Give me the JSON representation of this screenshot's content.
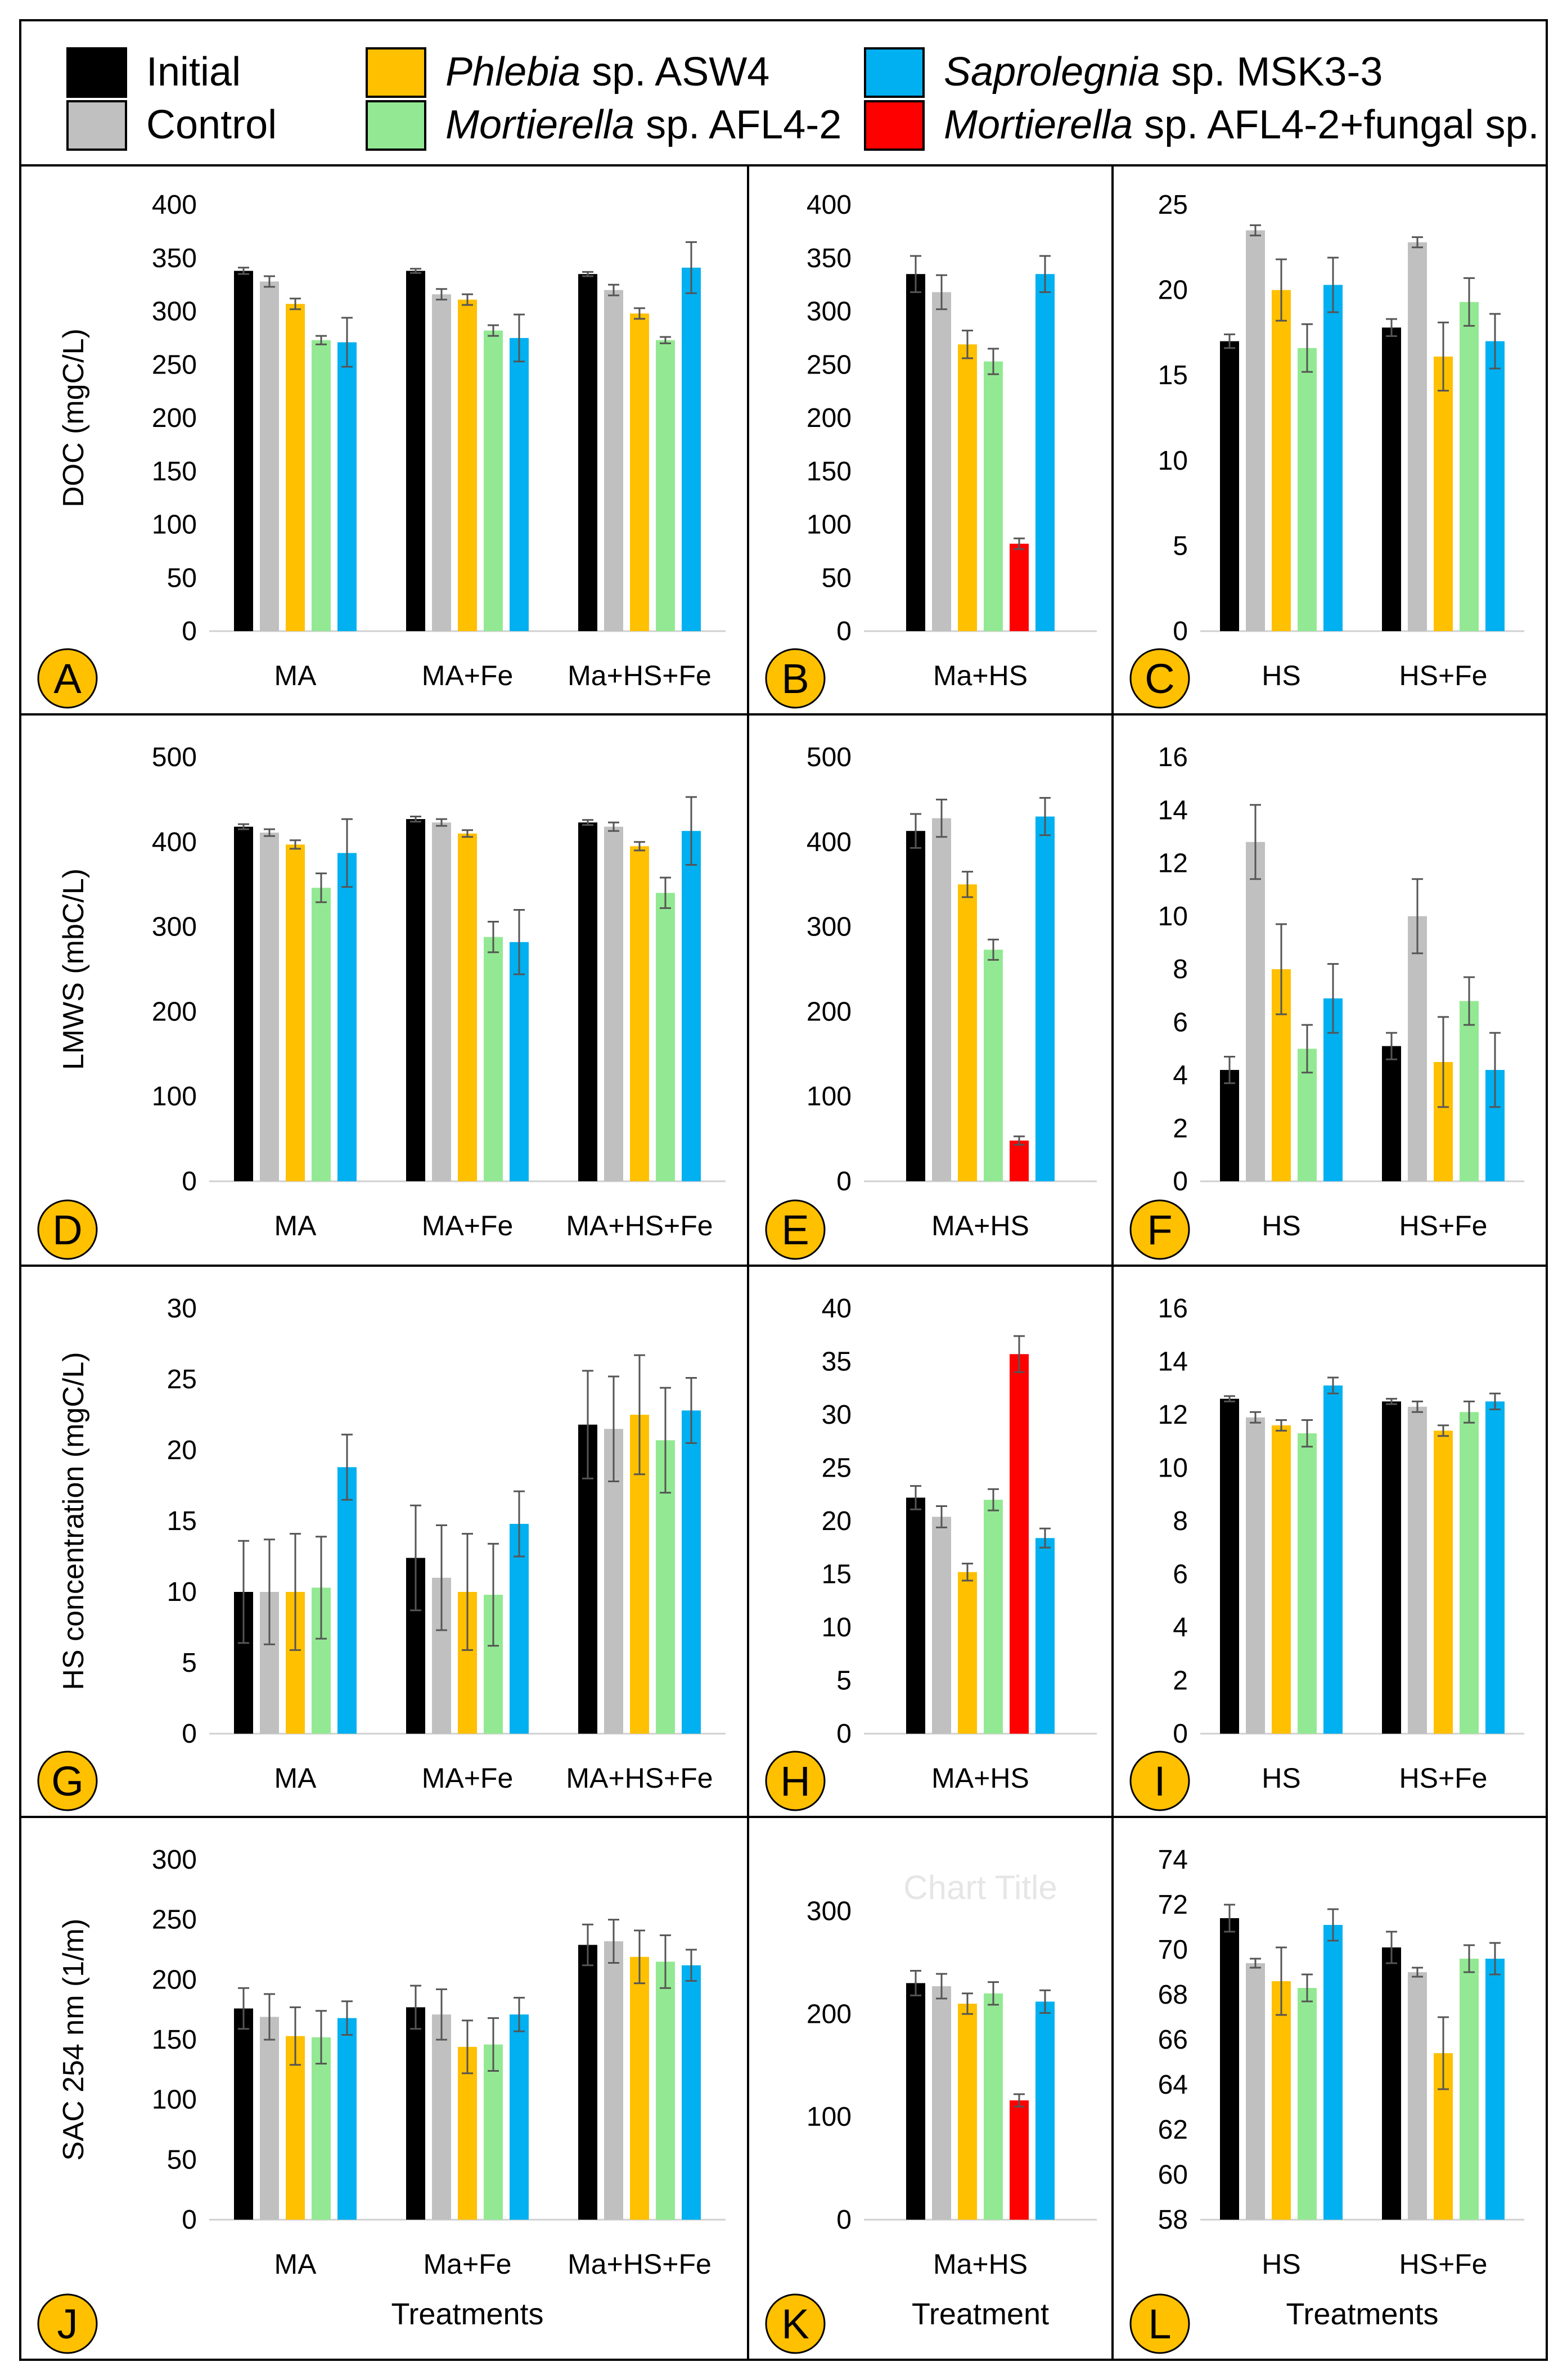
{
  "legend": {
    "items": [
      {
        "label_plain": "Initial",
        "label_italic": "",
        "color": "#000000"
      },
      {
        "label_plain": "Control",
        "label_italic": "",
        "color": "#c0c0c0"
      },
      {
        "label_italic": "Phlebia",
        "label_plain": " sp. ASW4",
        "color": "#ffc000"
      },
      {
        "label_italic": "Mortierella",
        "label_plain": " sp. AFL4-2",
        "color": "#93e993"
      },
      {
        "label_italic": "Saprolegnia",
        "label_plain": " sp. MSK3-3",
        "color": "#00b0f0"
      },
      {
        "label_italic": "Mortierella",
        "label_plain": " sp. AFL4-2+fungal sp.",
        "color": "#ff0000"
      }
    ]
  },
  "colors": {
    "Initial": "#000000",
    "Control": "#c0c0c0",
    "Phlebia": "#ffc000",
    "Mortierella": "#93e993",
    "Saprolegnia": "#00b0f0",
    "Mixed": "#ff0000",
    "badge": "#ffc000",
    "errorbar": "#555555"
  },
  "chart_data": [
    {
      "panel": "A",
      "type": "bar",
      "ylabel": "DOC (mgC/L)",
      "xlabel": "",
      "ylim": [
        0,
        400
      ],
      "yticks": [
        0,
        50,
        100,
        150,
        200,
        250,
        300,
        350,
        400
      ],
      "series_keys": [
        "Initial",
        "Control",
        "Phlebia",
        "Mortierella",
        "Saprolegnia"
      ],
      "groups": [
        {
          "category": "MA",
          "values": [
            338,
            328,
            307,
            273,
            271
          ],
          "errors": [
            3,
            5,
            5,
            4,
            23
          ]
        },
        {
          "category": "MA+Fe",
          "values": [
            338,
            316,
            311,
            282,
            275
          ],
          "errors": [
            2,
            5,
            5,
            5,
            22
          ]
        },
        {
          "category": "Ma+HS+Fe",
          "values": [
            335,
            320,
            298,
            273,
            341
          ],
          "errors": [
            2,
            5,
            5,
            3,
            24
          ]
        }
      ]
    },
    {
      "panel": "B",
      "type": "bar",
      "ylabel": "",
      "xlabel": "",
      "ylim": [
        0,
        400
      ],
      "yticks": [
        0,
        50,
        100,
        150,
        200,
        250,
        300,
        350,
        400
      ],
      "series_keys": [
        "Initial",
        "Control",
        "Phlebia",
        "Mortierella",
        "Mixed",
        "Saprolegnia"
      ],
      "groups": [
        {
          "category": "Ma+HS",
          "values": [
            335,
            318,
            269,
            253,
            82,
            335
          ],
          "errors": [
            17,
            16,
            13,
            12,
            5,
            17
          ]
        }
      ]
    },
    {
      "panel": "C",
      "type": "bar",
      "ylabel": "",
      "xlabel": "",
      "ylim": [
        0,
        25
      ],
      "yticks": [
        0,
        5,
        10,
        15,
        20,
        25
      ],
      "series_keys": [
        "Initial",
        "Control",
        "Phlebia",
        "Mortierella",
        "Saprolegnia"
      ],
      "groups": [
        {
          "category": "HS",
          "values": [
            17.0,
            23.5,
            20.0,
            16.6,
            20.3
          ],
          "errors": [
            0.4,
            0.3,
            1.8,
            1.4,
            1.6
          ]
        },
        {
          "category": "HS+Fe",
          "values": [
            17.8,
            22.8,
            16.1,
            19.3,
            17.0
          ],
          "errors": [
            0.5,
            0.3,
            2.0,
            1.4,
            1.6
          ]
        }
      ]
    },
    {
      "panel": "D",
      "type": "bar",
      "ylabel": "LMWS (mbC/L)",
      "xlabel": "",
      "ylim": [
        0,
        500
      ],
      "yticks": [
        0,
        100,
        200,
        300,
        400,
        500
      ],
      "series_keys": [
        "Initial",
        "Control",
        "Phlebia",
        "Mortierella",
        "Saprolegnia"
      ],
      "groups": [
        {
          "category": "MA",
          "values": [
            418,
            411,
            397,
            346,
            387
          ],
          "errors": [
            3,
            4,
            5,
            17,
            40
          ]
        },
        {
          "category": "MA+Fe",
          "values": [
            427,
            423,
            410,
            288,
            282
          ],
          "errors": [
            3,
            4,
            4,
            18,
            38
          ]
        },
        {
          "category": "MA+HS+Fe",
          "values": [
            423,
            418,
            395,
            340,
            413
          ],
          "errors": [
            3,
            5,
            5,
            18,
            40
          ]
        }
      ]
    },
    {
      "panel": "E",
      "type": "bar",
      "ylabel": "",
      "xlabel": "",
      "ylim": [
        0,
        500
      ],
      "yticks": [
        0,
        100,
        200,
        300,
        400,
        500
      ],
      "series_keys": [
        "Initial",
        "Control",
        "Phlebia",
        "Mortierella",
        "Mixed",
        "Saprolegnia"
      ],
      "groups": [
        {
          "category": "MA+HS",
          "values": [
            413,
            428,
            350,
            273,
            48,
            430
          ],
          "errors": [
            20,
            22,
            15,
            12,
            5,
            22
          ]
        }
      ]
    },
    {
      "panel": "F",
      "type": "bar",
      "ylabel": "",
      "xlabel": "",
      "ylim": [
        0,
        16
      ],
      "yticks": [
        0,
        2,
        4,
        6,
        8,
        10,
        12,
        14,
        16
      ],
      "series_keys": [
        "Initial",
        "Control",
        "Phlebia",
        "Mortierella",
        "Saprolegnia"
      ],
      "groups": [
        {
          "category": "HS",
          "values": [
            4.2,
            12.8,
            8.0,
            5.0,
            6.9
          ],
          "errors": [
            0.5,
            1.4,
            1.7,
            0.9,
            1.3
          ]
        },
        {
          "category": "HS+Fe",
          "values": [
            5.1,
            10.0,
            4.5,
            6.8,
            4.2
          ],
          "errors": [
            0.5,
            1.4,
            1.7,
            0.9,
            1.4
          ]
        }
      ]
    },
    {
      "panel": "G",
      "type": "bar",
      "ylabel": "HS concentration (mgC/L)",
      "xlabel": "",
      "ylim": [
        0,
        30
      ],
      "yticks": [
        0,
        5,
        10,
        15,
        20,
        25,
        30
      ],
      "series_keys": [
        "Initial",
        "Control",
        "Phlebia",
        "Mortierella",
        "Saprolegnia"
      ],
      "groups": [
        {
          "category": "MA",
          "values": [
            10.0,
            10.0,
            10.0,
            10.3,
            18.8
          ],
          "errors": [
            3.6,
            3.7,
            4.1,
            3.6,
            2.3
          ]
        },
        {
          "category": "MA+Fe",
          "values": [
            12.4,
            11.0,
            10.0,
            9.8,
            14.8
          ],
          "errors": [
            3.7,
            3.7,
            4.1,
            3.6,
            2.3
          ]
        },
        {
          "category": "MA+HS+Fe",
          "values": [
            21.8,
            21.5,
            22.5,
            20.7,
            22.8
          ],
          "errors": [
            3.8,
            3.7,
            4.2,
            3.7,
            2.3
          ]
        }
      ]
    },
    {
      "panel": "H",
      "type": "bar",
      "ylabel": "",
      "xlabel": "",
      "ylim": [
        0,
        40
      ],
      "yticks": [
        0,
        5,
        10,
        15,
        20,
        25,
        30,
        35,
        40
      ],
      "series_keys": [
        "Initial",
        "Control",
        "Phlebia",
        "Mortierella",
        "Mixed",
        "Saprolegnia"
      ],
      "groups": [
        {
          "category": "MA+HS",
          "values": [
            22.2,
            20.4,
            15.2,
            22.0,
            35.7,
            18.4
          ],
          "errors": [
            1.1,
            1.0,
            0.8,
            1.0,
            1.7,
            0.9
          ]
        }
      ]
    },
    {
      "panel": "I",
      "type": "bar",
      "ylabel": "",
      "xlabel": "",
      "ylim": [
        0,
        16
      ],
      "yticks": [
        0,
        2,
        4,
        6,
        8,
        10,
        12,
        14,
        16
      ],
      "series_keys": [
        "Initial",
        "Control",
        "Phlebia",
        "Mortierella",
        "Saprolegnia"
      ],
      "groups": [
        {
          "category": "HS",
          "values": [
            12.6,
            11.9,
            11.6,
            11.3,
            13.1
          ],
          "errors": [
            0.1,
            0.2,
            0.2,
            0.5,
            0.3
          ]
        },
        {
          "category": "HS+Fe",
          "values": [
            12.5,
            12.3,
            11.4,
            12.1,
            12.5
          ],
          "errors": [
            0.1,
            0.2,
            0.2,
            0.4,
            0.3
          ]
        }
      ]
    },
    {
      "panel": "J",
      "type": "bar",
      "ylabel": "SAC 254 nm (1/m)",
      "xlabel": "Treatments",
      "ylim": [
        0,
        300
      ],
      "yticks": [
        0,
        50,
        100,
        150,
        200,
        250,
        300
      ],
      "series_keys": [
        "Initial",
        "Control",
        "Phlebia",
        "Mortierella",
        "Saprolegnia"
      ],
      "groups": [
        {
          "category": "MA",
          "values": [
            176,
            169,
            153,
            152,
            168
          ],
          "errors": [
            17,
            19,
            24,
            22,
            14
          ]
        },
        {
          "category": "Ma+Fe",
          "values": [
            177,
            171,
            144,
            146,
            171
          ],
          "errors": [
            18,
            21,
            22,
            22,
            14
          ]
        },
        {
          "category": "Ma+HS+Fe",
          "values": [
            229,
            232,
            219,
            215,
            212
          ],
          "errors": [
            17,
            18,
            22,
            22,
            13
          ]
        }
      ]
    },
    {
      "panel": "K",
      "type": "bar",
      "ylabel": "",
      "xlabel": "Treatment",
      "ylim": [
        0,
        350
      ],
      "yticks": [
        0,
        100,
        200,
        300
      ],
      "watermark": "Chart Title",
      "series_keys": [
        "Initial",
        "Control",
        "Phlebia",
        "Mortierella",
        "Mixed",
        "Saprolegnia"
      ],
      "groups": [
        {
          "category": "Ma+HS",
          "values": [
            230,
            227,
            210,
            220,
            116,
            212
          ],
          "errors": [
            12,
            12,
            10,
            11,
            6,
            11
          ]
        }
      ]
    },
    {
      "panel": "L",
      "type": "bar",
      "ylabel": "",
      "xlabel": "Treatments",
      "ylim": [
        58,
        74
      ],
      "yticks": [
        58,
        60,
        62,
        64,
        66,
        68,
        70,
        72,
        74
      ],
      "series_keys": [
        "Initial",
        "Control",
        "Phlebia",
        "Mortierella",
        "Saprolegnia"
      ],
      "groups": [
        {
          "category": "HS",
          "values": [
            71.4,
            69.4,
            68.6,
            68.3,
            71.1
          ],
          "errors": [
            0.6,
            0.2,
            1.5,
            0.6,
            0.7
          ]
        },
        {
          "category": "HS+Fe",
          "values": [
            70.1,
            69.0,
            65.4,
            69.6,
            69.6
          ],
          "errors": [
            0.7,
            0.2,
            1.6,
            0.6,
            0.7
          ]
        }
      ]
    }
  ]
}
